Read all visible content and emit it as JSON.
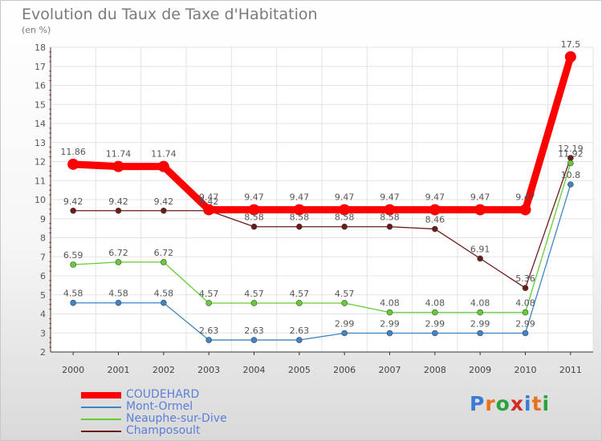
{
  "header": {
    "title": "Evolution du Taux de Taxe d'Habitation",
    "subtitle": "(en %)"
  },
  "logo": {
    "letters": [
      "P",
      "r",
      "o",
      "x",
      "i",
      "t",
      "i"
    ],
    "colors": [
      "#3a7bd5",
      "#e8721c",
      "#2aa33e",
      "#d42a2a",
      "#3a7bd5",
      "#e8721c",
      "#2aa33e"
    ]
  },
  "chart_data": {
    "type": "line",
    "title": "Evolution du Taux de Taxe d'Habitation",
    "ylabel": "(en %)",
    "xlabel": "",
    "categories": [
      "2000",
      "2001",
      "2002",
      "2003",
      "2004",
      "2005",
      "2006",
      "2007",
      "2008",
      "2009",
      "2010",
      "2011"
    ],
    "ylim": [
      2,
      18
    ],
    "yticks": [
      2,
      3,
      4,
      5,
      6,
      7,
      8,
      9,
      10,
      11,
      12,
      13,
      14,
      15,
      16,
      17,
      18
    ],
    "grid": true,
    "legend_position": "bottom-left",
    "series": [
      {
        "name": "COUDEHARD",
        "color": "#ff0000",
        "values": [
          11.86,
          11.74,
          11.74,
          9.47,
          9.47,
          9.47,
          9.47,
          9.47,
          9.47,
          9.47,
          9.47,
          17.5
        ],
        "labels": [
          "11.86",
          "11.74",
          "11.74",
          "9.47",
          "9.47",
          "9.47",
          "9.47",
          "9.47",
          "9.47",
          "9.47",
          "9.47",
          "17.5"
        ]
      },
      {
        "name": "Mont-Ormel",
        "color": "#3d85c6",
        "values": [
          4.58,
          4.58,
          4.58,
          2.63,
          2.63,
          2.63,
          2.99,
          2.99,
          2.99,
          2.99,
          2.99,
          10.8
        ],
        "labels": [
          "4.58",
          "4.58",
          "4.58",
          "2.63",
          "2.63",
          "2.63",
          "2.99",
          "2.99",
          "2.99",
          "2.99",
          "2.99",
          "10.8"
        ]
      },
      {
        "name": "Neauphe-sur-Dive",
        "color": "#66cc33",
        "values": [
          6.59,
          6.72,
          6.72,
          4.57,
          4.57,
          4.57,
          4.57,
          4.08,
          4.08,
          4.08,
          4.08,
          11.92
        ],
        "labels": [
          "6.59",
          "6.72",
          "6.72",
          "4.57",
          "4.57",
          "4.57",
          "4.57",
          "4.08",
          "4.08",
          "4.08",
          "4.08",
          "11.92"
        ]
      },
      {
        "name": "Champosoult",
        "color": "#6b1a1a",
        "values": [
          9.42,
          9.42,
          9.42,
          9.42,
          8.58,
          8.58,
          8.58,
          8.58,
          8.46,
          6.91,
          5.36,
          12.19
        ],
        "labels": [
          "9.42",
          "9.42",
          "9.42",
          "9.42",
          "8.58",
          "8.58",
          "8.58",
          "8.58",
          "8.46",
          "6.91",
          "5.36",
          "12.19"
        ]
      }
    ]
  }
}
